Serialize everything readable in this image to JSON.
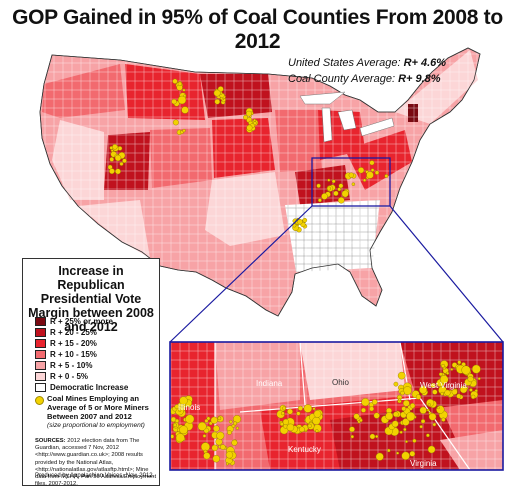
{
  "title": "GOP Gained in 95% of Coal Counties From 2008 to 2012",
  "averages": {
    "us_label": "United States Average:",
    "us_value": "R+ 4.6%",
    "coal_label": "Coal County Average:",
    "coal_value": "R+ 9.8%"
  },
  "legend": {
    "title": "Increase in Republican Presidential Vote Margin between 2008 and 2012",
    "items": [
      {
        "label": "R + 25% or more",
        "color": "#7a0a12"
      },
      {
        "label": "R + 20 - 25%",
        "color": "#c0121e"
      },
      {
        "label": "R + 15 - 20%",
        "color": "#e8242e"
      },
      {
        "label": "R + 10 - 15%",
        "color": "#f26a6f"
      },
      {
        "label": "R + 5 - 10%",
        "color": "#f7a3a6"
      },
      {
        "label": "R + 0 - 5%",
        "color": "#fcd6d7"
      },
      {
        "label": "Democratic Increase",
        "color": "#ffffff"
      }
    ],
    "mines_label": "Coal Mines Employing an Average of 5 or More Miners Between 2007 and 2012",
    "mines_note": "(size proportional to employment)",
    "mine_color": "#f2d200"
  },
  "sources": {
    "heading": "SOURCES:",
    "text": "2012 election data from The Guardian, accessed 7 Nov, 2012 <http://www.guardian.co.uk>; 2008 results provided by the National Atlas, <http://nationalatlas.gov/atlasftp.html>; Mine data from MSHA, Part 50 Address/Employment files, 2007-2012."
  },
  "produced_by": "Produced by Appalachian Voices, Nov, 2012.",
  "inset": {
    "labels": {
      "illinois": "Illinois",
      "indiana": "Indiana",
      "ohio": "Ohio",
      "west_virginia": "West Virginia",
      "kentucky": "Kentucky",
      "virginia": "Virginia"
    }
  }
}
